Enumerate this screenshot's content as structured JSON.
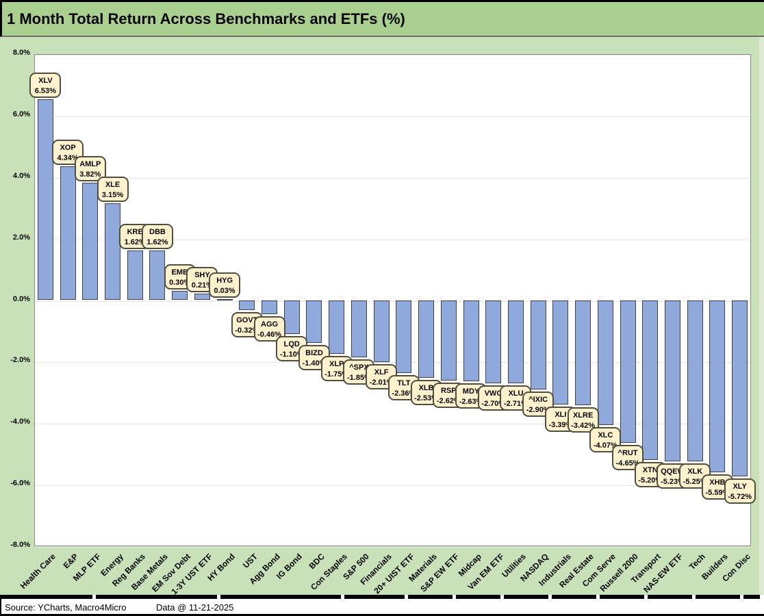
{
  "header": {
    "title": "1 Month Total Return Across Benchmarks and ETFs (%)"
  },
  "chart_data": {
    "type": "bar",
    "title": "1 Month Total Return Across Benchmarks and ETFs (%)",
    "xlabel": "",
    "ylabel": "",
    "ylim": [
      -8,
      8
    ],
    "ytick_step": 2,
    "ytick_labels": [
      "8.0%",
      "6.0%",
      "4.0%",
      "2.0%",
      "0.0%",
      "-2.0%",
      "-4.0%",
      "-6.0%",
      "-8.0%"
    ],
    "grid": true,
    "legend": "none",
    "categories": [
      "Health Care",
      "E&P",
      "MLP ETF",
      "Energy",
      "Reg Banks",
      "Base Metals",
      "EM Sov Debt",
      "1-3Y UST ETF",
      "HY Bond",
      "UST",
      "Agg Bond",
      "IG Bond",
      "BDC",
      "Con Staples",
      "S&P 500",
      "Financials",
      "20+ UIST ETF",
      "Materials",
      "S&P EW ETF",
      "Midcap",
      "Van EM ETF",
      "Utilities",
      "NASDAQ",
      "Industrials",
      "Real Estate",
      "Com Serve",
      "Russell 2000",
      "Transport",
      "NAS-EW ETF",
      "Tech",
      "Builders",
      "Con Disc"
    ],
    "tickers": [
      "XLV",
      "XOP",
      "AMLP",
      "XLE",
      "KRE",
      "DBB",
      "EMB",
      "SHY",
      "HYG",
      "GOVT",
      "AGG",
      "LQD",
      "BIZD",
      "XLP",
      "^SPX",
      "XLF",
      "TLT",
      "XLB",
      "RSP",
      "MDY",
      "VWO",
      "XLU",
      "^IXIC",
      "XLI",
      "XLRE",
      "XLC",
      "^RUT",
      "XTN",
      "QQEW",
      "XLK",
      "XHB",
      "XLY"
    ],
    "values": [
      6.53,
      4.34,
      3.82,
      3.15,
      1.62,
      1.62,
      0.3,
      0.21,
      0.03,
      -0.32,
      -0.46,
      -1.1,
      -1.4,
      -1.75,
      -1.85,
      -2.01,
      -2.36,
      -2.53,
      -2.62,
      -2.63,
      -2.7,
      -2.71,
      -2.9,
      -3.39,
      -3.42,
      -4.07,
      -4.65,
      -5.2,
      -5.23,
      -5.25,
      -5.59,
      -5.72
    ],
    "value_suffix": "%",
    "colors": {
      "bar_fill": "#8FA9DC",
      "bar_border": "#3f3f3f",
      "label_fill": "#FFF2CC",
      "label_border": "#4d4d42",
      "title_bg": "#A9D08E",
      "chart_bg": "#C9E1B9",
      "plot_bg": "#FFFFFF",
      "gridline": "#E4E4E4"
    }
  },
  "footer": {
    "source": "Source: YCharts, Macro4Micro",
    "data_date": "Data @ 11-21-2025"
  }
}
